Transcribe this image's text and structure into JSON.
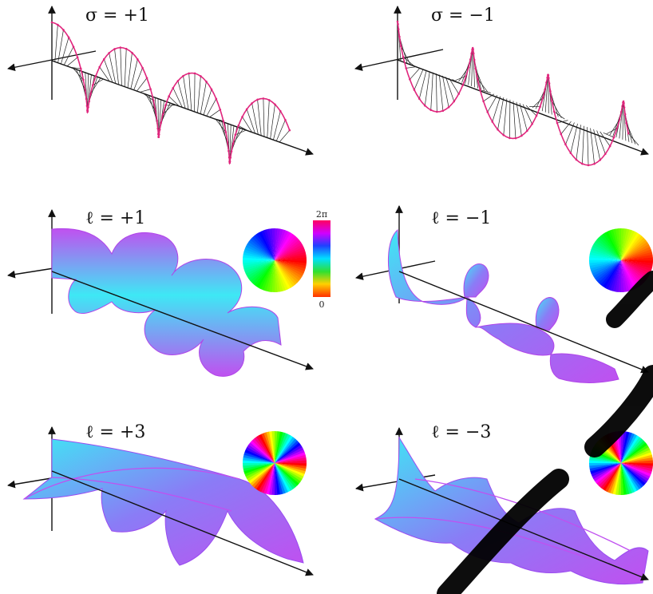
{
  "panels": {
    "sigma_plus": {
      "label": "σ = +1"
    },
    "sigma_minus": {
      "label": "σ = −1"
    },
    "l_plus1": {
      "label": "ℓ = +1"
    },
    "l_minus1": {
      "label": "ℓ = −1"
    },
    "l_plus3": {
      "label": "ℓ = +3"
    },
    "l_minus3": {
      "label": "ℓ = −3"
    }
  },
  "colorbar": {
    "top": "2π",
    "bottom": "0"
  },
  "colors": {
    "polarization_ring": "#e0267d",
    "axis": "#111111",
    "surface_core": "#3ee8f5",
    "surface_edge": "#c050f0"
  }
}
